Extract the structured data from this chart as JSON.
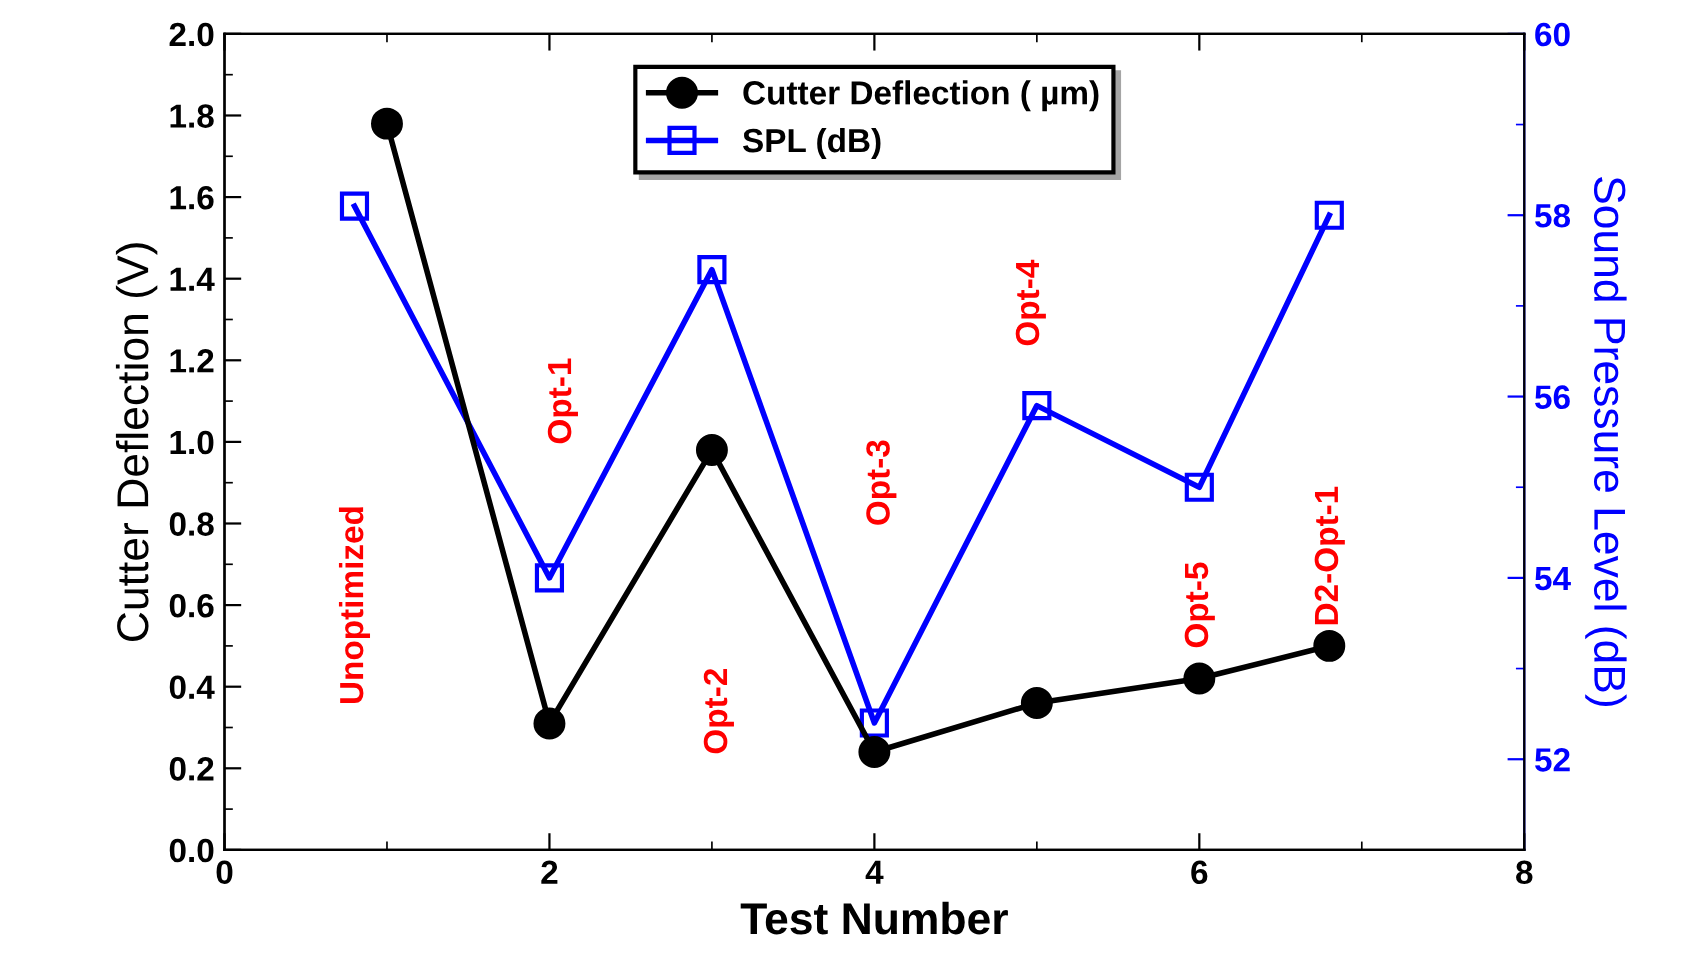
{
  "chart_data": {
    "type": "line",
    "xlabel": "Test Number",
    "ylabel": "Cutter Deflection (V)",
    "y2label": "Sound Pressure Level (dB)",
    "xlim": [
      0,
      8
    ],
    "xticks": [
      0,
      2,
      4,
      6,
      8
    ],
    "ylim": [
      0,
      2
    ],
    "yticks": [
      {
        "value": 0,
        "label": "0.0"
      },
      {
        "value": 0.2,
        "label": "0.2"
      },
      {
        "value": 0.4,
        "label": "0.4"
      },
      {
        "value": 0.6,
        "label": "0.6"
      },
      {
        "value": 0.8,
        "label": "0.8"
      },
      {
        "value": 1.0,
        "label": "1.0"
      },
      {
        "value": 1.2,
        "label": "1.2"
      },
      {
        "value": 1.4,
        "label": "1.4"
      },
      {
        "value": 1.6,
        "label": "1.6"
      },
      {
        "value": 1.8,
        "label": "1.8"
      },
      {
        "value": 2.0,
        "label": "2.0"
      }
    ],
    "y2lim": [
      51,
      60
    ],
    "y2ticks": [
      52,
      54,
      56,
      58,
      60
    ],
    "series": [
      {
        "name": "Cutter Deflection ( µm)",
        "color": "#000000",
        "marker": "circle",
        "x": [
          1,
          2,
          3,
          4,
          5,
          6,
          6.8
        ],
        "values": [
          1.78,
          0.31,
          0.98,
          0.24,
          0.36,
          0.42,
          0.5
        ]
      },
      {
        "name": "SPL (dB)",
        "color": "#0000ff",
        "marker": "square",
        "axis": "y2",
        "x": [
          0.8,
          2,
          3,
          4,
          5,
          6,
          6.8
        ],
        "values": [
          58.1,
          54.0,
          57.4,
          52.4,
          55.9,
          55.0,
          58.0
        ]
      }
    ],
    "annotations": [
      "Unoptimized",
      "Opt-1",
      "Opt-2",
      "Opt-3",
      "Opt-4",
      "Opt-5",
      "D2-Opt-1"
    ],
    "legend": "top",
    "grid": false
  }
}
